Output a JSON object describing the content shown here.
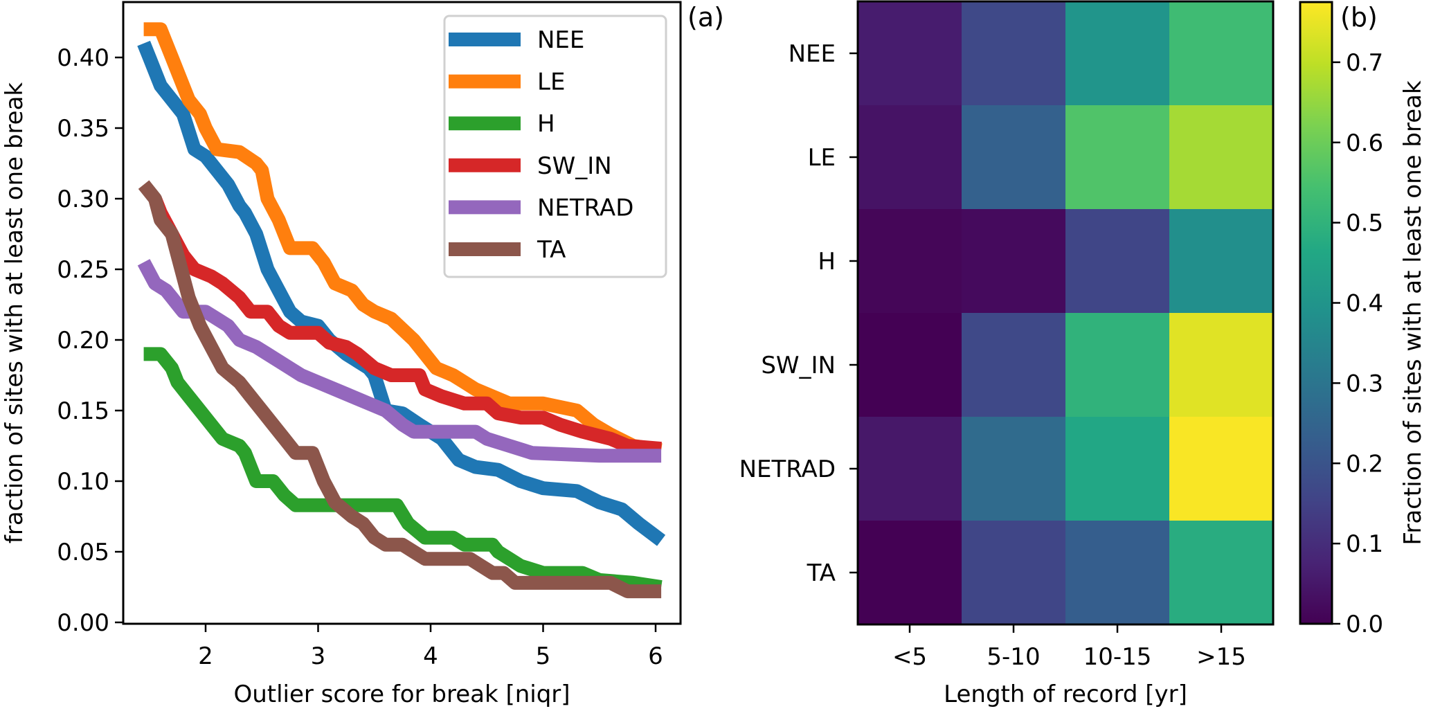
{
  "chart_data": [
    {
      "panel": "(a)",
      "type": "line",
      "title": "",
      "xlabel": "Outlier score for break [niqr]",
      "ylabel": "fraction of sites with at least one break",
      "xlim": [
        1.25,
        6.3
      ],
      "ylim": [
        0.0,
        0.44
      ],
      "xticks": [
        2,
        3,
        4,
        5,
        6
      ],
      "xtick_labels": [
        "2",
        "3",
        "4",
        "5",
        "6"
      ],
      "yticks": [
        0.0,
        0.05,
        0.1,
        0.15,
        0.2,
        0.25,
        0.3,
        0.35,
        0.4
      ],
      "ytick_labels": [
        "0.00",
        "0.05",
        "0.10",
        "0.15",
        "0.20",
        "0.25",
        "0.30",
        "0.35",
        "0.40"
      ],
      "grid": false,
      "legend_position": "top-right",
      "series": [
        {
          "name": "NEE",
          "color": "#1f77b4",
          "points": [
            [
              1.45,
              0.41
            ],
            [
              1.5,
              0.4
            ],
            [
              1.6,
              0.38
            ],
            [
              1.7,
              0.37
            ],
            [
              1.8,
              0.36
            ],
            [
              1.9,
              0.335
            ],
            [
              2.0,
              0.33
            ],
            [
              2.1,
              0.32
            ],
            [
              2.2,
              0.31
            ],
            [
              2.3,
              0.295
            ],
            [
              2.35,
              0.29
            ],
            [
              2.45,
              0.275
            ],
            [
              2.55,
              0.25
            ],
            [
              2.65,
              0.235
            ],
            [
              2.75,
              0.22
            ],
            [
              2.85,
              0.213
            ],
            [
              3.0,
              0.21
            ],
            [
              3.1,
              0.2
            ],
            [
              3.25,
              0.19
            ],
            [
              3.35,
              0.185
            ],
            [
              3.45,
              0.18
            ],
            [
              3.5,
              0.175
            ],
            [
              3.6,
              0.15
            ],
            [
              3.75,
              0.148
            ],
            [
              3.9,
              0.14
            ],
            [
              4.0,
              0.135
            ],
            [
              4.1,
              0.13
            ],
            [
              4.25,
              0.115
            ],
            [
              4.4,
              0.11
            ],
            [
              4.6,
              0.108
            ],
            [
              4.8,
              0.1
            ],
            [
              5.0,
              0.095
            ],
            [
              5.3,
              0.093
            ],
            [
              5.5,
              0.085
            ],
            [
              5.7,
              0.08
            ],
            [
              5.85,
              0.07
            ],
            [
              6.05,
              0.058
            ]
          ]
        },
        {
          "name": "LE",
          "color": "#ff7f0e",
          "points": [
            [
              1.45,
              0.42
            ],
            [
              1.6,
              0.42
            ],
            [
              1.7,
              0.4
            ],
            [
              1.85,
              0.37
            ],
            [
              1.95,
              0.36
            ],
            [
              2.0,
              0.35
            ],
            [
              2.1,
              0.335
            ],
            [
              2.3,
              0.333
            ],
            [
              2.45,
              0.325
            ],
            [
              2.5,
              0.32
            ],
            [
              2.55,
              0.3
            ],
            [
              2.65,
              0.285
            ],
            [
              2.75,
              0.265
            ],
            [
              2.95,
              0.265
            ],
            [
              3.05,
              0.255
            ],
            [
              3.15,
              0.24
            ],
            [
              3.3,
              0.235
            ],
            [
              3.4,
              0.225
            ],
            [
              3.5,
              0.22
            ],
            [
              3.65,
              0.215
            ],
            [
              3.85,
              0.2
            ],
            [
              3.95,
              0.19
            ],
            [
              4.05,
              0.18
            ],
            [
              4.2,
              0.175
            ],
            [
              4.3,
              0.17
            ],
            [
              4.4,
              0.165
            ],
            [
              4.55,
              0.16
            ],
            [
              4.7,
              0.155
            ],
            [
              5.0,
              0.155
            ],
            [
              5.3,
              0.15
            ],
            [
              5.45,
              0.14
            ],
            [
              5.6,
              0.133
            ],
            [
              5.8,
              0.125
            ],
            [
              6.05,
              0.122
            ]
          ]
        },
        {
          "name": "H",
          "color": "#2ca02c",
          "points": [
            [
              1.45,
              0.19
            ],
            [
              1.6,
              0.19
            ],
            [
              1.7,
              0.18
            ],
            [
              1.75,
              0.17
            ],
            [
              1.85,
              0.16
            ],
            [
              1.95,
              0.15
            ],
            [
              2.05,
              0.14
            ],
            [
              2.15,
              0.13
            ],
            [
              2.3,
              0.125
            ],
            [
              2.35,
              0.12
            ],
            [
              2.45,
              0.1
            ],
            [
              2.6,
              0.1
            ],
            [
              2.7,
              0.09
            ],
            [
              2.8,
              0.083
            ],
            [
              3.7,
              0.083
            ],
            [
              3.8,
              0.07
            ],
            [
              3.95,
              0.06
            ],
            [
              4.2,
              0.06
            ],
            [
              4.3,
              0.055
            ],
            [
              4.55,
              0.055
            ],
            [
              4.6,
              0.05
            ],
            [
              4.7,
              0.045
            ],
            [
              4.8,
              0.04
            ],
            [
              5.0,
              0.035
            ],
            [
              5.35,
              0.035
            ],
            [
              5.5,
              0.03
            ],
            [
              5.8,
              0.028
            ],
            [
              6.05,
              0.025
            ]
          ]
        },
        {
          "name": "SW_IN",
          "color": "#d62728",
          "points": [
            [
              1.55,
              0.3
            ],
            [
              1.6,
              0.29
            ],
            [
              1.7,
              0.275
            ],
            [
              1.8,
              0.26
            ],
            [
              1.9,
              0.25
            ],
            [
              2.05,
              0.245
            ],
            [
              2.15,
              0.24
            ],
            [
              2.3,
              0.23
            ],
            [
              2.4,
              0.22
            ],
            [
              2.55,
              0.22
            ],
            [
              2.65,
              0.21
            ],
            [
              2.75,
              0.205
            ],
            [
              3.0,
              0.205
            ],
            [
              3.1,
              0.198
            ],
            [
              3.25,
              0.195
            ],
            [
              3.35,
              0.19
            ],
            [
              3.5,
              0.18
            ],
            [
              3.65,
              0.175
            ],
            [
              3.9,
              0.175
            ],
            [
              3.95,
              0.165
            ],
            [
              4.1,
              0.16
            ],
            [
              4.3,
              0.155
            ],
            [
              4.5,
              0.155
            ],
            [
              4.6,
              0.148
            ],
            [
              4.8,
              0.145
            ],
            [
              5.0,
              0.145
            ],
            [
              5.15,
              0.14
            ],
            [
              5.35,
              0.135
            ],
            [
              5.6,
              0.13
            ],
            [
              5.75,
              0.125
            ],
            [
              6.05,
              0.123
            ]
          ]
        },
        {
          "name": "NETRAD",
          "color": "#9467bd",
          "points": [
            [
              1.45,
              0.255
            ],
            [
              1.55,
              0.24
            ],
            [
              1.65,
              0.235
            ],
            [
              1.7,
              0.23
            ],
            [
              1.8,
              0.22
            ],
            [
              2.0,
              0.22
            ],
            [
              2.1,
              0.215
            ],
            [
              2.2,
              0.21
            ],
            [
              2.3,
              0.2
            ],
            [
              2.45,
              0.195
            ],
            [
              2.55,
              0.19
            ],
            [
              2.65,
              0.185
            ],
            [
              2.75,
              0.18
            ],
            [
              2.85,
              0.175
            ],
            [
              3.0,
              0.17
            ],
            [
              3.15,
              0.165
            ],
            [
              3.3,
              0.16
            ],
            [
              3.45,
              0.155
            ],
            [
              3.6,
              0.15
            ],
            [
              3.75,
              0.14
            ],
            [
              3.85,
              0.135
            ],
            [
              4.4,
              0.135
            ],
            [
              4.5,
              0.13
            ],
            [
              4.7,
              0.125
            ],
            [
              4.9,
              0.12
            ],
            [
              5.5,
              0.118
            ],
            [
              6.05,
              0.118
            ]
          ]
        },
        {
          "name": "TA",
          "color": "#8c564b",
          "points": [
            [
              1.45,
              0.31
            ],
            [
              1.55,
              0.3
            ],
            [
              1.6,
              0.285
            ],
            [
              1.7,
              0.275
            ],
            [
              1.75,
              0.26
            ],
            [
              1.8,
              0.245
            ],
            [
              1.85,
              0.23
            ],
            [
              1.95,
              0.21
            ],
            [
              2.05,
              0.195
            ],
            [
              2.15,
              0.18
            ],
            [
              2.3,
              0.17
            ],
            [
              2.4,
              0.16
            ],
            [
              2.5,
              0.15
            ],
            [
              2.6,
              0.14
            ],
            [
              2.7,
              0.13
            ],
            [
              2.8,
              0.12
            ],
            [
              2.95,
              0.12
            ],
            [
              3.0,
              0.11
            ],
            [
              3.05,
              0.1
            ],
            [
              3.15,
              0.085
            ],
            [
              3.3,
              0.075
            ],
            [
              3.4,
              0.07
            ],
            [
              3.5,
              0.06
            ],
            [
              3.6,
              0.055
            ],
            [
              3.75,
              0.055
            ],
            [
              3.85,
              0.05
            ],
            [
              3.95,
              0.045
            ],
            [
              4.35,
              0.045
            ],
            [
              4.45,
              0.04
            ],
            [
              4.55,
              0.035
            ],
            [
              4.65,
              0.035
            ],
            [
              4.75,
              0.028
            ],
            [
              5.6,
              0.028
            ],
            [
              5.75,
              0.022
            ],
            [
              6.05,
              0.022
            ]
          ]
        }
      ]
    },
    {
      "panel": "(b)",
      "type": "heatmap",
      "title": "",
      "xlabel": "Length of record [yr]",
      "ylabel": "",
      "categories_x": [
        "<5",
        "5-10",
        "10-15",
        ">15"
      ],
      "categories_y": [
        "NEE",
        "LE",
        "H",
        "SW_IN",
        "NETRAD",
        "TA"
      ],
      "values": [
        [
          0.06,
          0.17,
          0.4,
          0.53
        ],
        [
          0.04,
          0.24,
          0.56,
          0.67
        ],
        [
          0.01,
          0.02,
          0.16,
          0.38
        ],
        [
          0.0,
          0.17,
          0.5,
          0.74
        ],
        [
          0.05,
          0.27,
          0.46,
          0.77
        ],
        [
          0.0,
          0.16,
          0.23,
          0.48
        ]
      ],
      "colormap": "viridis",
      "colorbar": {
        "label": "Fraction of sites with at least one break",
        "range": [
          0.0,
          0.775
        ],
        "ticks": [
          0.0,
          0.1,
          0.2,
          0.3,
          0.4,
          0.5,
          0.6,
          0.7
        ],
        "tick_labels": [
          "0.0",
          "0.1",
          "0.2",
          "0.3",
          "0.4",
          "0.5",
          "0.6",
          "0.7"
        ]
      }
    }
  ]
}
